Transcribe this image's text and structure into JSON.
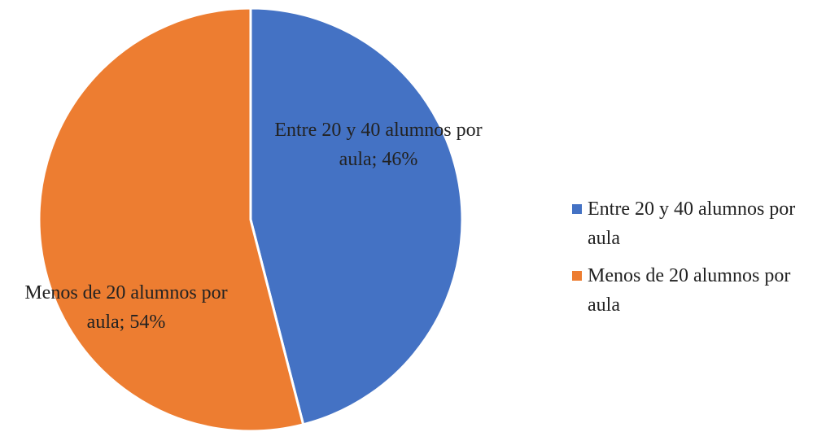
{
  "chart_data": {
    "type": "pie",
    "categories": [
      "Entre 20 y 40 alumnos por aula",
      "Menos de 20 alumnos por aula"
    ],
    "values": [
      46,
      54
    ],
    "value_labels": [
      "Entre 20 y 40 alumnos por aula; 46%",
      "Menos de 20 alumnos por aula; 54%"
    ],
    "colors": [
      "#4472c4",
      "#ed7d31"
    ],
    "legend": "right"
  }
}
